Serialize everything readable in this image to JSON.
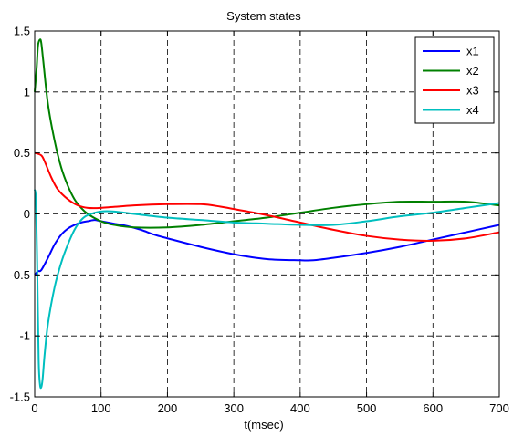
{
  "chart_data": {
    "type": "line",
    "title": "System states",
    "xlabel": "t(msec)",
    "ylabel": "",
    "xlim": [
      0,
      700
    ],
    "ylim": [
      -1.5,
      1.5
    ],
    "xticks": [
      0,
      100,
      200,
      300,
      400,
      500,
      600,
      700
    ],
    "yticks": [
      -1.5,
      -1,
      -0.5,
      0,
      0.5,
      1,
      1.5
    ],
    "xtick_labels": [
      "0",
      "100",
      "200",
      "300",
      "400",
      "500",
      "600",
      "700"
    ],
    "ytick_labels": [
      "-1.5",
      "-1",
      "-0.5",
      "0",
      "0.5",
      "1",
      "1.5"
    ],
    "grid": true,
    "legend_position": "top-right",
    "series": [
      {
        "name": "x1",
        "color": "#0000ff",
        "points": [
          [
            0,
            -0.5
          ],
          [
            5,
            -0.47
          ],
          [
            10,
            -0.46
          ],
          [
            20,
            -0.36
          ],
          [
            30,
            -0.25
          ],
          [
            40,
            -0.17
          ],
          [
            50,
            -0.12
          ],
          [
            60,
            -0.09
          ],
          [
            70,
            -0.07
          ],
          [
            80,
            -0.06
          ],
          [
            90,
            -0.05
          ],
          [
            100,
            -0.06
          ],
          [
            120,
            -0.08
          ],
          [
            140,
            -0.1
          ],
          [
            160,
            -0.13
          ],
          [
            180,
            -0.17
          ],
          [
            200,
            -0.2
          ],
          [
            250,
            -0.27
          ],
          [
            300,
            -0.33
          ],
          [
            350,
            -0.37
          ],
          [
            400,
            -0.38
          ],
          [
            420,
            -0.38
          ],
          [
            450,
            -0.36
          ],
          [
            500,
            -0.32
          ],
          [
            550,
            -0.27
          ],
          [
            600,
            -0.21
          ],
          [
            650,
            -0.15
          ],
          [
            700,
            -0.09
          ]
        ]
      },
      {
        "name": "x2",
        "color": "#008000",
        "points": [
          [
            0,
            1.0
          ],
          [
            3,
            1.2
          ],
          [
            5,
            1.38
          ],
          [
            8,
            1.43
          ],
          [
            10,
            1.4
          ],
          [
            13,
            1.25
          ],
          [
            20,
            0.9
          ],
          [
            30,
            0.6
          ],
          [
            40,
            0.38
          ],
          [
            50,
            0.23
          ],
          [
            60,
            0.12
          ],
          [
            70,
            0.05
          ],
          [
            80,
            0.0
          ],
          [
            100,
            -0.06
          ],
          [
            120,
            -0.09
          ],
          [
            150,
            -0.11
          ],
          [
            200,
            -0.11
          ],
          [
            250,
            -0.09
          ],
          [
            300,
            -0.06
          ],
          [
            350,
            -0.03
          ],
          [
            400,
            0.01
          ],
          [
            450,
            0.05
          ],
          [
            500,
            0.08
          ],
          [
            550,
            0.1
          ],
          [
            600,
            0.1
          ],
          [
            650,
            0.1
          ],
          [
            700,
            0.07
          ]
        ]
      },
      {
        "name": "x3",
        "color": "#ff0000",
        "points": [
          [
            0,
            0.5
          ],
          [
            10,
            0.48
          ],
          [
            15,
            0.43
          ],
          [
            25,
            0.3
          ],
          [
            35,
            0.2
          ],
          [
            50,
            0.12
          ],
          [
            65,
            0.07
          ],
          [
            80,
            0.05
          ],
          [
            100,
            0.05
          ],
          [
            150,
            0.07
          ],
          [
            200,
            0.08
          ],
          [
            250,
            0.08
          ],
          [
            280,
            0.06
          ],
          [
            300,
            0.04
          ],
          [
            350,
            -0.01
          ],
          [
            400,
            -0.07
          ],
          [
            450,
            -0.13
          ],
          [
            500,
            -0.18
          ],
          [
            550,
            -0.21
          ],
          [
            600,
            -0.22
          ],
          [
            650,
            -0.2
          ],
          [
            700,
            -0.15
          ]
        ]
      },
      {
        "name": "x4",
        "color": "#00bfbf",
        "points": [
          [
            0,
            0.2
          ],
          [
            2,
            0.1
          ],
          [
            4,
            -0.5
          ],
          [
            6,
            -1.2
          ],
          [
            8,
            -1.4
          ],
          [
            10,
            -1.42
          ],
          [
            12,
            -1.35
          ],
          [
            15,
            -1.15
          ],
          [
            20,
            -0.9
          ],
          [
            30,
            -0.6
          ],
          [
            40,
            -0.4
          ],
          [
            50,
            -0.25
          ],
          [
            60,
            -0.13
          ],
          [
            70,
            -0.05
          ],
          [
            80,
            -0.01
          ],
          [
            100,
            0.02
          ],
          [
            120,
            0.02
          ],
          [
            150,
            0.0
          ],
          [
            200,
            -0.03
          ],
          [
            250,
            -0.05
          ],
          [
            300,
            -0.07
          ],
          [
            350,
            -0.08
          ],
          [
            400,
            -0.09
          ],
          [
            450,
            -0.09
          ],
          [
            500,
            -0.06
          ],
          [
            550,
            -0.02
          ],
          [
            600,
            0.01
          ],
          [
            650,
            0.05
          ],
          [
            700,
            0.09
          ]
        ]
      }
    ]
  }
}
